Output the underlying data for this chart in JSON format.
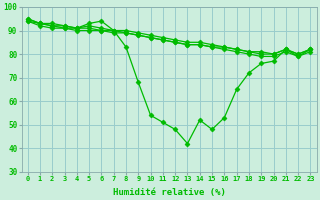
{
  "line1": [
    95,
    93,
    93,
    92,
    91,
    93,
    94,
    90,
    83,
    68,
    54,
    51,
    48,
    42,
    52,
    48,
    53,
    65,
    72,
    76,
    77,
    82,
    79,
    82
  ],
  "line2": [
    95,
    93,
    92,
    92,
    91,
    92,
    91,
    90,
    90,
    89,
    88,
    87,
    86,
    85,
    85,
    84,
    83,
    82,
    81,
    81,
    80,
    82,
    80,
    82
  ],
  "line3": [
    94,
    93,
    92,
    91,
    91,
    91,
    90,
    90,
    89,
    88,
    87,
    86,
    85,
    84,
    84,
    83,
    83,
    82,
    81,
    80,
    80,
    82,
    80,
    82
  ],
  "line4": [
    94,
    92,
    91,
    91,
    90,
    90,
    90,
    89,
    89,
    88,
    87,
    86,
    85,
    84,
    84,
    83,
    82,
    81,
    80,
    79,
    79,
    81,
    79,
    81
  ],
  "x": [
    0,
    1,
    2,
    3,
    4,
    5,
    6,
    7,
    8,
    9,
    10,
    11,
    12,
    13,
    14,
    15,
    16,
    17,
    18,
    19,
    20,
    21,
    22,
    23
  ],
  "line_color": "#00bb00",
  "marker": "D",
  "markersize": 2.5,
  "linewidth": 0.9,
  "bg_color": "#cceedd",
  "grid_color": "#99cccc",
  "xlabel": "Humidité relative (%)",
  "ylim": [
    30,
    100
  ],
  "xlim": [
    -0.5,
    23.5
  ],
  "yticks": [
    30,
    40,
    50,
    60,
    70,
    80,
    90,
    100
  ],
  "xticks": [
    0,
    1,
    2,
    3,
    4,
    5,
    6,
    7,
    8,
    9,
    10,
    11,
    12,
    13,
    14,
    15,
    16,
    17,
    18,
    19,
    20,
    21,
    22,
    23
  ],
  "tick_fontsize": 5.0,
  "ylabel_fontsize": 6.5,
  "xlabel_fontsize": 6.5
}
